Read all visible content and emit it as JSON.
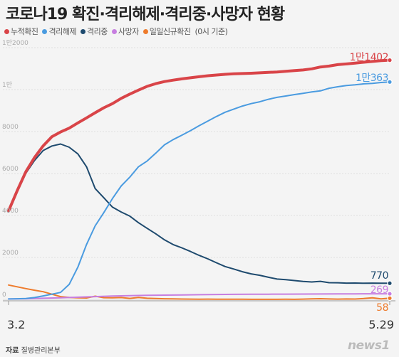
{
  "title": "코로나19 확진·격리해제·격리중·사망자 현황",
  "legend": {
    "note": "(0시 기준)"
  },
  "source": {
    "prefix": "자료",
    "text": "질병관리본부"
  },
  "brand": "news1",
  "colors": {
    "background": "#f4f4f4",
    "confirmed": "#d94448",
    "released": "#4a9be0",
    "isolated": "#1e4a6e",
    "deaths": "#c77ee0",
    "daily_new": "#ee7b2c"
  },
  "chart_data": {
    "type": "line",
    "x_start_label": "3.2",
    "x_end_label": "5.29",
    "xlim": [
      0,
      88
    ],
    "ylim": [
      0,
      12000
    ],
    "yticks": [
      {
        "value": 12000,
        "label": "1만2000"
      },
      {
        "value": 10000,
        "label": "1만"
      },
      {
        "value": 8000,
        "label": "8000"
      },
      {
        "value": 6000,
        "label": "6000"
      },
      {
        "value": 4000,
        "label": "4000"
      },
      {
        "value": 2000,
        "label": "2000"
      },
      {
        "value": 0,
        "label": "0"
      }
    ],
    "grid": true,
    "legend_position": "top-left",
    "series": [
      {
        "name": "누적확진",
        "key": "confirmed",
        "end_label": "1만1402",
        "points": [
          [
            0,
            4212
          ],
          [
            2,
            5186
          ],
          [
            4,
            6088
          ],
          [
            6,
            6767
          ],
          [
            8,
            7319
          ],
          [
            10,
            7755
          ],
          [
            12,
            7979
          ],
          [
            14,
            8162
          ],
          [
            16,
            8413
          ],
          [
            18,
            8652
          ],
          [
            20,
            8897
          ],
          [
            22,
            9137
          ],
          [
            24,
            9332
          ],
          [
            26,
            9583
          ],
          [
            28,
            9786
          ],
          [
            30,
            9976
          ],
          [
            32,
            10156
          ],
          [
            34,
            10284
          ],
          [
            36,
            10384
          ],
          [
            38,
            10450
          ],
          [
            40,
            10512
          ],
          [
            42,
            10564
          ],
          [
            44,
            10613
          ],
          [
            46,
            10661
          ],
          [
            48,
            10694
          ],
          [
            50,
            10728
          ],
          [
            52,
            10752
          ],
          [
            54,
            10765
          ],
          [
            56,
            10780
          ],
          [
            58,
            10801
          ],
          [
            60,
            10822
          ],
          [
            62,
            10840
          ],
          [
            64,
            10874
          ],
          [
            66,
            10909
          ],
          [
            68,
            10936
          ],
          [
            70,
            10991
          ],
          [
            72,
            11078
          ],
          [
            74,
            11122
          ],
          [
            76,
            11190
          ],
          [
            78,
            11225
          ],
          [
            80,
            11265
          ],
          [
            82,
            11304
          ],
          [
            84,
            11344
          ],
          [
            86,
            11378
          ],
          [
            88,
            11402
          ]
        ]
      },
      {
        "name": "격리해제",
        "key": "released",
        "end_label": "1만363",
        "points": [
          [
            0,
            22
          ],
          [
            2,
            30
          ],
          [
            4,
            41
          ],
          [
            6,
            88
          ],
          [
            8,
            166
          ],
          [
            10,
            247
          ],
          [
            12,
            333
          ],
          [
            14,
            714
          ],
          [
            16,
            1540
          ],
          [
            18,
            2612
          ],
          [
            20,
            3507
          ],
          [
            22,
            4144
          ],
          [
            24,
            4811
          ],
          [
            26,
            5408
          ],
          [
            28,
            5828
          ],
          [
            30,
            6325
          ],
          [
            32,
            6598
          ],
          [
            34,
            6973
          ],
          [
            36,
            7368
          ],
          [
            38,
            7616
          ],
          [
            40,
            7828
          ],
          [
            42,
            8042
          ],
          [
            44,
            8277
          ],
          [
            46,
            8501
          ],
          [
            48,
            8717
          ],
          [
            50,
            8922
          ],
          [
            52,
            9072
          ],
          [
            54,
            9217
          ],
          [
            56,
            9333
          ],
          [
            58,
            9419
          ],
          [
            60,
            9538
          ],
          [
            62,
            9632
          ],
          [
            64,
            9695
          ],
          [
            66,
            9762
          ],
          [
            68,
            9823
          ],
          [
            70,
            9888
          ],
          [
            72,
            9938
          ],
          [
            74,
            10066
          ],
          [
            76,
            10135
          ],
          [
            78,
            10194
          ],
          [
            80,
            10226
          ],
          [
            82,
            10275
          ],
          [
            84,
            10298
          ],
          [
            86,
            10340
          ],
          [
            88,
            10363
          ]
        ]
      },
      {
        "name": "격리중",
        "key": "isolated",
        "end_label": "770",
        "points": [
          [
            0,
            4168
          ],
          [
            2,
            5125
          ],
          [
            4,
            6015
          ],
          [
            6,
            6624
          ],
          [
            8,
            7100
          ],
          [
            10,
            7313
          ],
          [
            12,
            7407
          ],
          [
            14,
            7253
          ],
          [
            16,
            6934
          ],
          [
            18,
            6325
          ],
          [
            20,
            5281
          ],
          [
            22,
            4841
          ],
          [
            24,
            4398
          ],
          [
            26,
            4166
          ],
          [
            28,
            3968
          ],
          [
            30,
            3654
          ],
          [
            32,
            3386
          ],
          [
            34,
            3125
          ],
          [
            36,
            2836
          ],
          [
            38,
            2612
          ],
          [
            40,
            2457
          ],
          [
            42,
            2285
          ],
          [
            44,
            2100
          ],
          [
            46,
            1933
          ],
          [
            48,
            1745
          ],
          [
            50,
            1567
          ],
          [
            52,
            1449
          ],
          [
            54,
            1320
          ],
          [
            56,
            1217
          ],
          [
            58,
            1149
          ],
          [
            60,
            1055
          ],
          [
            62,
            968
          ],
          [
            64,
            941
          ],
          [
            66,
            898
          ],
          [
            68,
            855
          ],
          [
            70,
            830
          ],
          [
            72,
            862
          ],
          [
            74,
            796
          ],
          [
            76,
            793
          ],
          [
            78,
            777
          ],
          [
            80,
            781
          ],
          [
            82,
            770
          ],
          [
            84,
            775
          ],
          [
            86,
            771
          ],
          [
            88,
            770
          ]
        ]
      },
      {
        "name": "사망자",
        "key": "deaths",
        "end_label": "269",
        "points": [
          [
            0,
            22
          ],
          [
            4,
            32
          ],
          [
            8,
            54
          ],
          [
            12,
            75
          ],
          [
            16,
            104
          ],
          [
            20,
            131
          ],
          [
            24,
            158
          ],
          [
            28,
            177
          ],
          [
            32,
            192
          ],
          [
            36,
            204
          ],
          [
            40,
            214
          ],
          [
            44,
            225
          ],
          [
            48,
            234
          ],
          [
            52,
            240
          ],
          [
            56,
            244
          ],
          [
            60,
            248
          ],
          [
            64,
            252
          ],
          [
            68,
            255
          ],
          [
            72,
            258
          ],
          [
            76,
            263
          ],
          [
            80,
            264
          ],
          [
            84,
            267
          ],
          [
            88,
            269
          ]
        ]
      },
      {
        "name": "일일신규확진",
        "key": "daily_new",
        "end_label": "58",
        "points": [
          [
            0,
            686
          ],
          [
            2,
            600
          ],
          [
            4,
            516
          ],
          [
            6,
            438
          ],
          [
            8,
            367
          ],
          [
            10,
            248
          ],
          [
            12,
            131
          ],
          [
            14,
            93
          ],
          [
            16,
            74
          ],
          [
            18,
            69
          ],
          [
            20,
            152
          ],
          [
            22,
            81
          ],
          [
            24,
            76
          ],
          [
            26,
            89
          ],
          [
            28,
            47
          ],
          [
            30,
            94
          ],
          [
            32,
            53
          ],
          [
            34,
            39
          ],
          [
            36,
            32
          ],
          [
            38,
            25
          ],
          [
            40,
            18
          ],
          [
            42,
            13
          ],
          [
            44,
            10
          ],
          [
            46,
            14
          ],
          [
            48,
            10
          ],
          [
            50,
            8
          ],
          [
            52,
            6
          ],
          [
            54,
            9
          ],
          [
            56,
            4
          ],
          [
            58,
            3
          ],
          [
            60,
            2
          ],
          [
            62,
            3
          ],
          [
            64,
            8
          ],
          [
            66,
            4
          ],
          [
            68,
            13
          ],
          [
            70,
            27
          ],
          [
            72,
            34
          ],
          [
            74,
            20
          ],
          [
            76,
            15
          ],
          [
            78,
            19
          ],
          [
            80,
            16
          ],
          [
            82,
            40
          ],
          [
            84,
            79
          ],
          [
            86,
            27
          ],
          [
            88,
            58
          ]
        ]
      }
    ]
  }
}
